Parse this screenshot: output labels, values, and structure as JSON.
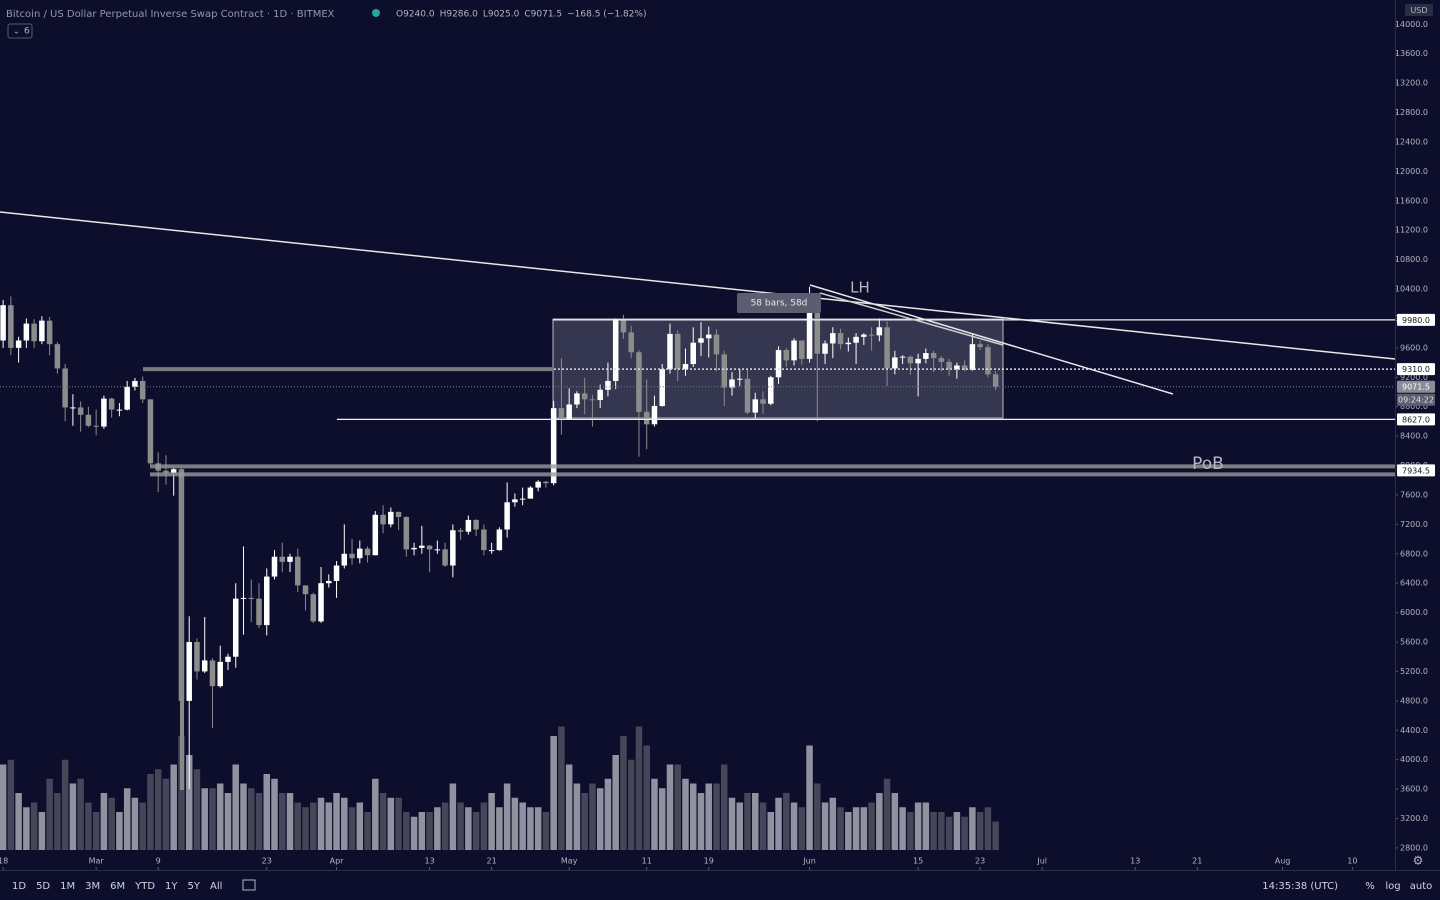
{
  "header": {
    "title": "Bitcoin / US Dollar Perpetual Inverse Swap Contract · 1D · BITMEX",
    "ohlc": [
      "O9240.0",
      "H9286.0",
      "L9025.0",
      "C9071.5",
      "−168.5 (−1.82%)"
    ],
    "indicator_count": "6"
  },
  "chart_data": {
    "type": "candlestick",
    "x": [
      -12,
      -11,
      -10,
      -9,
      -8,
      -7,
      -6,
      -5,
      -4,
      -3,
      -2,
      -1,
      0,
      1,
      2,
      3,
      4,
      5,
      6,
      7,
      8,
      9,
      10,
      11,
      12,
      13,
      14,
      15,
      16,
      17,
      18,
      19,
      20,
      21,
      22,
      23,
      24,
      25,
      26,
      27,
      28,
      29,
      30,
      31,
      32,
      33,
      34,
      35,
      36,
      37,
      38,
      39,
      40,
      41,
      42,
      43,
      44,
      45,
      46,
      47,
      48,
      49,
      50,
      51,
      52,
      53,
      54,
      55,
      56,
      57,
      58,
      59,
      60,
      61,
      62,
      63,
      64,
      65,
      66,
      67,
      68,
      69,
      70,
      71,
      72,
      73,
      74,
      75,
      76,
      77,
      78,
      79,
      80,
      81,
      82,
      83,
      84,
      85,
      86,
      87,
      88,
      89,
      90,
      91,
      92,
      93,
      94,
      95,
      96,
      97,
      98,
      99,
      100,
      101,
      102,
      103,
      104,
      105,
      106,
      107,
      108,
      109,
      110,
      111,
      112,
      113,
      114,
      115,
      116
    ],
    "open": [
      9700,
      10180,
      9600,
      9700,
      9930,
      9690,
      9970,
      9650,
      9320,
      8790,
      8790,
      8690,
      8540,
      8530,
      8910,
      8760,
      8760,
      9070,
      9150,
      8900,
      8030,
      7930,
      7900,
      7950,
      4800,
      5600,
      5200,
      5350,
      5000,
      5330,
      5400,
      6190,
      6200,
      6190,
      5830,
      6490,
      6760,
      6690,
      6760,
      6370,
      6250,
      5880,
      6400,
      6430,
      6640,
      6800,
      6740,
      6870,
      6780,
      7330,
      7200,
      7370,
      7300,
      6860,
      6880,
      6910,
      6860,
      6860,
      6640,
      7120,
      7100,
      7260,
      7130,
      6850,
      6850,
      7130,
      7500,
      7540,
      7550,
      7700,
      7780,
      7760,
      8780,
      8630,
      8830,
      8980,
      8900,
      8890,
      9030,
      9150,
      9990,
      9810,
      9540,
      8730,
      8560,
      8810,
      9310,
      9790,
      9310,
      9380,
      9670,
      9730,
      9780,
      9510,
      9060,
      9170,
      9180,
      8720,
      8900,
      8840,
      9200,
      9570,
      9430,
      9700,
      9450,
      10200,
      9520,
      9660,
      9800,
      9650,
      9670,
      9750,
      9780,
      9770,
      9880,
      9320,
      9470,
      9480,
      9390,
      9450,
      9530,
      9460,
      9410,
      9310,
      9360,
      9300,
      9650,
      9610,
      9240
    ],
    "high": [
      10250,
      10300,
      9750,
      10000,
      9990,
      10030,
      10020,
      9680,
      9380,
      8970,
      8870,
      8800,
      8760,
      8950,
      8920,
      8850,
      9150,
      9190,
      9210,
      8900,
      8180,
      8140,
      7970,
      7970,
      5950,
      5650,
      5940,
      5380,
      5550,
      5440,
      6400,
      6900,
      6450,
      6400,
      6600,
      6850,
      6950,
      6800,
      6870,
      6370,
      6270,
      6620,
      6520,
      6700,
      7200,
      7000,
      6980,
      6900,
      7380,
      7460,
      7430,
      7370,
      7310,
      6950,
      7180,
      6920,
      6980,
      6950,
      7200,
      7150,
      7320,
      7270,
      7200,
      6950,
      7160,
      7770,
      7620,
      7700,
      7720,
      7800,
      7790,
      8880,
      9460,
      9050,
      9010,
      9190,
      8960,
      9100,
      9400,
      10000,
      10050,
      9900,
      9570,
      9170,
      8950,
      9380,
      9930,
      9840,
      9590,
      9880,
      9950,
      9890,
      9850,
      9560,
      9270,
      9310,
      9300,
      8990,
      9010,
      9220,
      9620,
      9600,
      9730,
      9700,
      10430,
      10230,
      9700,
      9880,
      9860,
      9740,
      9800,
      9800,
      9880,
      10000,
      9960,
      9560,
      9500,
      9500,
      9520,
      9590,
      9560,
      9490,
      9450,
      9400,
      9430,
      9780,
      9700,
      9650,
      9286
    ],
    "low": [
      9600,
      9500,
      9400,
      9600,
      9600,
      9650,
      9500,
      9250,
      8600,
      8540,
      8460,
      8520,
      8410,
      8500,
      8650,
      8670,
      8750,
      9020,
      8850,
      8010,
      7640,
      7740,
      7590,
      4300,
      3600,
      5090,
      5180,
      4430,
      4980,
      5220,
      5250,
      5700,
      5870,
      5790,
      5690,
      6450,
      6550,
      6550,
      6280,
      6030,
      5860,
      5860,
      6340,
      6200,
      6600,
      6650,
      6670,
      6680,
      6780,
      7080,
      7160,
      7120,
      6760,
      6780,
      6800,
      6550,
      6800,
      6620,
      6480,
      6990,
      7060,
      7040,
      6780,
      6800,
      6840,
      7020,
      7440,
      7460,
      7550,
      7650,
      7700,
      7730,
      8420,
      8620,
      8780,
      8700,
      8530,
      8780,
      8940,
      9040,
      9720,
      9460,
      8120,
      8220,
      8530,
      8800,
      9250,
      9150,
      9220,
      9340,
      9490,
      9470,
      9280,
      8810,
      8950,
      9080,
      8700,
      8640,
      8700,
      8820,
      9110,
      9340,
      9360,
      9370,
      9400,
      8600,
      9380,
      9460,
      9580,
      9550,
      9380,
      9640,
      9560,
      9690,
      9080,
      9240,
      9380,
      9230,
      8940,
      9390,
      9270,
      9280,
      9220,
      9180,
      9280,
      9290,
      9570,
      9200,
      9025
    ],
    "close": [
      10180,
      9600,
      9700,
      9930,
      9690,
      9970,
      9650,
      9320,
      8790,
      8790,
      8690,
      8540,
      8530,
      8910,
      8760,
      8760,
      9070,
      9150,
      8900,
      8030,
      7930,
      7900,
      7950,
      4800,
      5600,
      5200,
      5350,
      5000,
      5330,
      5400,
      6190,
      6200,
      6190,
      5830,
      6490,
      6760,
      6690,
      6760,
      6370,
      6250,
      5880,
      6400,
      6430,
      6640,
      6800,
      6740,
      6870,
      6780,
      7330,
      7200,
      7370,
      7300,
      6860,
      6880,
      6910,
      6860,
      6860,
      6640,
      7120,
      7100,
      7260,
      7130,
      6850,
      6850,
      7130,
      7500,
      7540,
      7550,
      7700,
      7780,
      7760,
      8780,
      8630,
      8830,
      8980,
      8900,
      8890,
      9030,
      9150,
      9990,
      9810,
      9540,
      8730,
      8560,
      8810,
      9310,
      9790,
      9310,
      9380,
      9670,
      9730,
      9780,
      9510,
      9060,
      9170,
      9180,
      8720,
      8900,
      8840,
      9200,
      9570,
      9430,
      9700,
      9450,
      10200,
      9520,
      9660,
      9800,
      9650,
      9670,
      9750,
      9780,
      9770,
      9880,
      9320,
      9470,
      9480,
      9390,
      9450,
      9530,
      9460,
      9410,
      9310,
      9360,
      9300,
      9650,
      9610,
      9240,
      9071.5
    ],
    "volume": [
      90,
      95,
      60,
      45,
      50,
      40,
      75,
      60,
      95,
      70,
      75,
      50,
      40,
      60,
      55,
      40,
      65,
      55,
      50,
      80,
      85,
      75,
      90,
      120,
      100,
      85,
      65,
      65,
      70,
      60,
      90,
      70,
      65,
      60,
      80,
      75,
      60,
      60,
      50,
      45,
      50,
      55,
      50,
      60,
      55,
      45,
      50,
      40,
      75,
      60,
      55,
      55,
      40,
      35,
      40,
      40,
      45,
      50,
      70,
      50,
      45,
      40,
      50,
      60,
      45,
      70,
      55,
      50,
      45,
      45,
      40,
      120,
      130,
      90,
      70,
      60,
      70,
      65,
      75,
      100,
      120,
      95,
      130,
      110,
      75,
      65,
      90,
      90,
      75,
      70,
      60,
      70,
      70,
      90,
      55,
      50,
      60,
      60,
      50,
      40,
      55,
      60,
      50,
      45,
      110,
      70,
      50,
      55,
      45,
      40,
      45,
      45,
      50,
      60,
      75,
      60,
      45,
      40,
      50,
      50,
      40,
      40,
      35,
      40,
      35,
      45,
      40,
      45,
      30
    ],
    "up_color": "#ffffff",
    "down_color": "#8c8c8c",
    "xlim": [
      -12.4,
      167.5
    ],
    "xticks": [
      {
        "value": -12,
        "label": "18"
      },
      {
        "value": 0,
        "label": "Mar"
      },
      {
        "value": 8,
        "label": "9"
      },
      {
        "value": 22,
        "label": "23"
      },
      {
        "value": 31,
        "label": "Apr"
      },
      {
        "value": 43,
        "label": "13"
      },
      {
        "value": 51,
        "label": "21"
      },
      {
        "value": 61,
        "label": "May"
      },
      {
        "value": 71,
        "label": "11"
      },
      {
        "value": 79,
        "label": "19"
      },
      {
        "value": 92,
        "label": "Jun"
      },
      {
        "value": 106,
        "label": "15"
      },
      {
        "value": 114,
        "label": "23"
      },
      {
        "value": 122,
        "label": "Jul"
      },
      {
        "value": 134,
        "label": "13"
      },
      {
        "value": 142,
        "label": "21"
      },
      {
        "value": 153,
        "label": "Aug"
      },
      {
        "value": 162,
        "label": "10"
      }
    ],
    "ylim": [
      2500,
      14330
    ],
    "yticks": [
      {
        "value": 2800,
        "label": "2800.0"
      },
      {
        "value": 3200,
        "label": "3200.0"
      },
      {
        "value": 3600,
        "label": "3600.0"
      },
      {
        "value": 4000,
        "label": "4000.0"
      },
      {
        "value": 4400,
        "label": "4400.0"
      },
      {
        "value": 4800,
        "label": "4800.0"
      },
      {
        "value": 5200,
        "label": "5200.0"
      },
      {
        "value": 5600,
        "label": "5600.0"
      },
      {
        "value": 6000,
        "label": "6000.0"
      },
      {
        "value": 6400,
        "label": "6400.0"
      },
      {
        "value": 6800,
        "label": "6800.0"
      },
      {
        "value": 7200,
        "label": "7200.0"
      },
      {
        "value": 7600,
        "label": "7600.0"
      },
      {
        "value": 8000,
        "label": "8000.0"
      },
      {
        "value": 8400,
        "label": "8400.0"
      },
      {
        "value": 8800,
        "label": "8800.0"
      },
      {
        "value": 9200,
        "label": "9200.0"
      },
      {
        "value": 9600,
        "label": "9600.0"
      },
      {
        "value": 10000,
        "label": "10000.0"
      },
      {
        "value": 10400,
        "label": "10400.0"
      },
      {
        "value": 10800,
        "label": "10800.0"
      },
      {
        "value": 11200,
        "label": "11200.0"
      },
      {
        "value": 11600,
        "label": "11600.0"
      },
      {
        "value": 12000,
        "label": "12000.0"
      },
      {
        "value": 12400,
        "label": "12400.0"
      },
      {
        "value": 12800,
        "label": "12800.0"
      },
      {
        "value": 13200,
        "label": "13200.0"
      },
      {
        "value": 13600,
        "label": "13600.0"
      },
      {
        "value": 14000,
        "label": "14000.0"
      }
    ],
    "currency": "USD",
    "levels": [
      {
        "value": 9980,
        "label": "9980.0"
      },
      {
        "value": 9310,
        "label": "9310.0"
      },
      {
        "value": 9071.5,
        "label": "9071.5"
      },
      {
        "value": 8627,
        "label": "8627.0"
      },
      {
        "value": 7934.5,
        "label": "7934.5"
      }
    ],
    "countdown": "09:24:22",
    "annotations": [
      "58 bars, 58d",
      "LH",
      "PoB"
    ]
  },
  "toolbar": {
    "ranges": [
      "1D",
      "5D",
      "1M",
      "3M",
      "6M",
      "YTD",
      "1Y",
      "5Y",
      "All"
    ],
    "clock": "14:35:38 (UTC)",
    "options": [
      "%",
      "log",
      "auto"
    ]
  }
}
